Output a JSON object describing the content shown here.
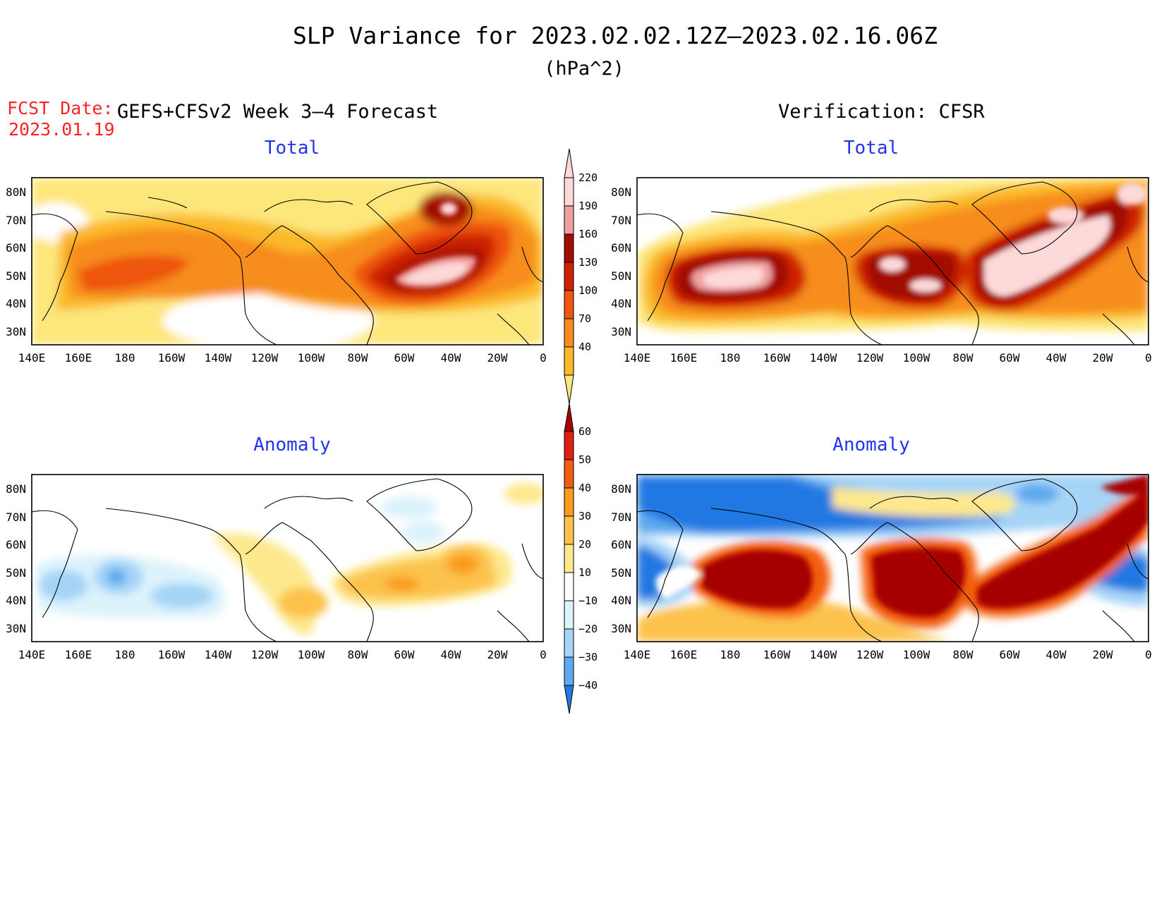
{
  "header": {
    "title": "SLP Variance for 2023.02.02.12Z–2023.02.16.06Z",
    "units": "(hPa^2)",
    "fcst_label": "FCST Date:",
    "fcst_date": "2023.01.19",
    "forecast_title": "GEFS+CFSv2 Week 3–4 Forecast",
    "verification_title": "Verification: CFSR"
  },
  "panels": {
    "fc_total_label": "Total",
    "ver_total_label": "Total",
    "fc_anom_label": "Anomaly",
    "ver_anom_label": "Anomaly"
  },
  "axes": {
    "lat_ticks": [
      "80N",
      "70N",
      "60N",
      "50N",
      "40N",
      "30N"
    ],
    "lon_ticks": [
      "140E",
      "160E",
      "180",
      "160W",
      "140W",
      "120W",
      "100W",
      "80W",
      "60W",
      "40W",
      "20W",
      "0"
    ],
    "lat_range": [
      25,
      85
    ],
    "lon_range_east": [
      140,
      360
    ]
  },
  "colorbars": {
    "total": {
      "levels": [
        "40",
        "70",
        "100",
        "130",
        "160",
        "190",
        "220"
      ],
      "colors": [
        "#fde67a",
        "#fbb92a",
        "#f78d1e",
        "#ee5511",
        "#cc2200",
        "#a30d05",
        "#f0a0a0",
        "#fdd9d9"
      ]
    },
    "anomaly": {
      "levels": [
        "60",
        "50",
        "40",
        "30",
        "20",
        "10",
        "−10",
        "−20",
        "−30",
        "−40"
      ],
      "colors_top_to_bottom": [
        "#a60000",
        "#dd2211",
        "#f25d0f",
        "#f99b1c",
        "#fcc24c",
        "#fde88d",
        "#ffffff",
        "#dcf3fb",
        "#a5d4f7",
        "#5ea9ef",
        "#2478e2"
      ]
    }
  },
  "chart_data": {
    "type": "heatmap",
    "projection": "cylindrical equidistant",
    "grid": false,
    "map_fields": {
      "fc_total": [
        {
          "lon": 196,
          "lat": 47,
          "value": 70,
          "rx": 70,
          "ry": 25
        },
        {
          "lon": 220,
          "lat": 52,
          "value": 100,
          "rx": 50,
          "ry": 18
        },
        {
          "lon": 175,
          "lat": 48,
          "value": 130,
          "rx": 26,
          "ry": 10
        },
        {
          "lon": 300,
          "lat": 50,
          "value": 160,
          "rx": 33,
          "ry": 14
        },
        {
          "lon": 300,
          "lat": 48,
          "value": 220,
          "rx": 18,
          "ry": 7
        },
        {
          "lon": 320,
          "lat": 75,
          "value": 190,
          "rx": 8,
          "ry": 5
        }
      ],
      "ver_total": [
        {
          "lon": 185,
          "lat": 48,
          "value": 190,
          "rx": 22,
          "ry": 10
        },
        {
          "lon": 275,
          "lat": 48,
          "value": 190,
          "rx": 16,
          "ry": 9
        },
        {
          "lon": 315,
          "lat": 50,
          "value": 220,
          "rx": 25,
          "ry": 15
        },
        {
          "lon": 345,
          "lat": 73,
          "value": 220,
          "rx": 7,
          "ry": 5
        }
      ],
      "fc_anomaly": [
        {
          "lon": 180,
          "lat": 47,
          "value": -30,
          "rx": 6,
          "ry": 4
        },
        {
          "lon": 310,
          "lat": 48,
          "value": 30,
          "rx": 25,
          "ry": 10
        },
        {
          "lon": 260,
          "lat": 43,
          "value": 20,
          "rx": 14,
          "ry": 8
        }
      ],
      "ver_anomaly": [
        {
          "lon": 240,
          "lat": 78,
          "value": -30,
          "rx": 80,
          "ry": 7
        },
        {
          "lon": 150,
          "lat": 45,
          "value": -40,
          "rx": 10,
          "ry": 12
        },
        {
          "lon": 188,
          "lat": 48,
          "value": 60,
          "rx": 30,
          "ry": 10
        },
        {
          "lon": 277,
          "lat": 47,
          "value": 60,
          "rx": 24,
          "ry": 9
        },
        {
          "lon": 328,
          "lat": 55,
          "value": 60,
          "rx": 22,
          "ry": 12
        },
        {
          "lon": 350,
          "lat": 48,
          "value": -40,
          "rx": 9,
          "ry": 8
        }
      ]
    }
  }
}
